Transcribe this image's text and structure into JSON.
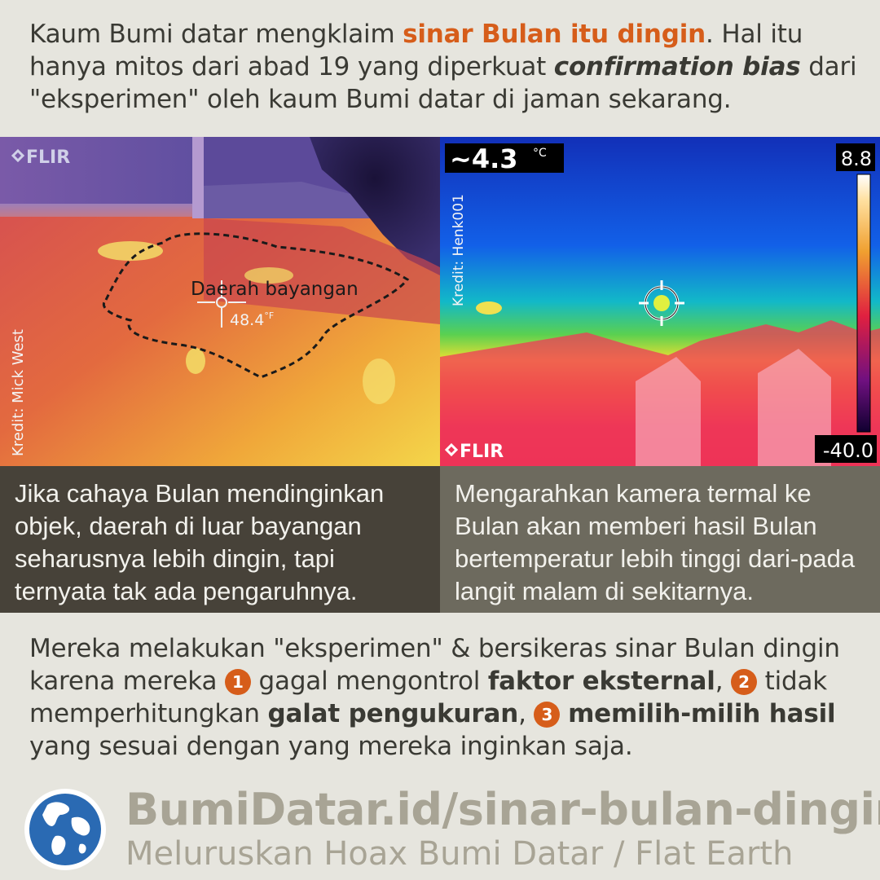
{
  "intro": {
    "part1": "Kaum Bumi datar mengklaim ",
    "highlight": "sinar Bulan itu dingin",
    "part2": ". Hal itu hanya mitos dari abad 19 yang diperkuat ",
    "bold_italic": "confirmation bias",
    "part3": " dari \"eksperimen\" oleh kaum Bumi datar di jaman sekarang."
  },
  "left_image": {
    "brand": "FLIR",
    "shadow_label": "Daerah bayangan",
    "temperature": "48.4",
    "unit": "°F",
    "credit": "Kredit: Mick West"
  },
  "right_image": {
    "brand": "FLIR",
    "temperature": "~4.3",
    "unit": "°C",
    "scale_max": "8.8",
    "scale_min": "-40.0",
    "credit": "Kredit: Henk001"
  },
  "captions": {
    "left": "Jika cahaya Bulan mendinginkan objek, daerah di luar bayangan seharusnya lebih dingin, tapi ternyata tak ada pengaruhnya.",
    "right": "Mengarahkan kamera termal ke Bulan akan memberi hasil Bulan bertemperatur lebih tinggi dari-pada langit malam di sekitarnya."
  },
  "bottom": {
    "part1": "Mereka melakukan \"eksperimen\" & bersikeras sinar Bulan dingin karena mereka ",
    "num1": "1",
    "part2": " gagal mengontrol ",
    "bold1": "faktor eksternal",
    "part3": ", ",
    "num2": "2",
    "part4": " tidak memperhitungkan ",
    "bold2": "galat pengukuran",
    "part5": ", ",
    "num3": "3",
    "part6": " ",
    "bold3": "memilih-milih hasil",
    "part7": " yang sesuai dengan yang mereka inginkan saja."
  },
  "footer": {
    "url": "BumiDatar.id/sinar-bulan-dingin",
    "tagline": "Meluruskan Hoax Bumi Datar / Flat Earth",
    "logo_icon": "globe-icon"
  },
  "colors": {
    "accent": "#d65d1a",
    "background": "#e6e5de",
    "left_caption_bg": "#474239",
    "right_caption_bg": "#6d6a5e",
    "footer_text": "#a8a495"
  }
}
